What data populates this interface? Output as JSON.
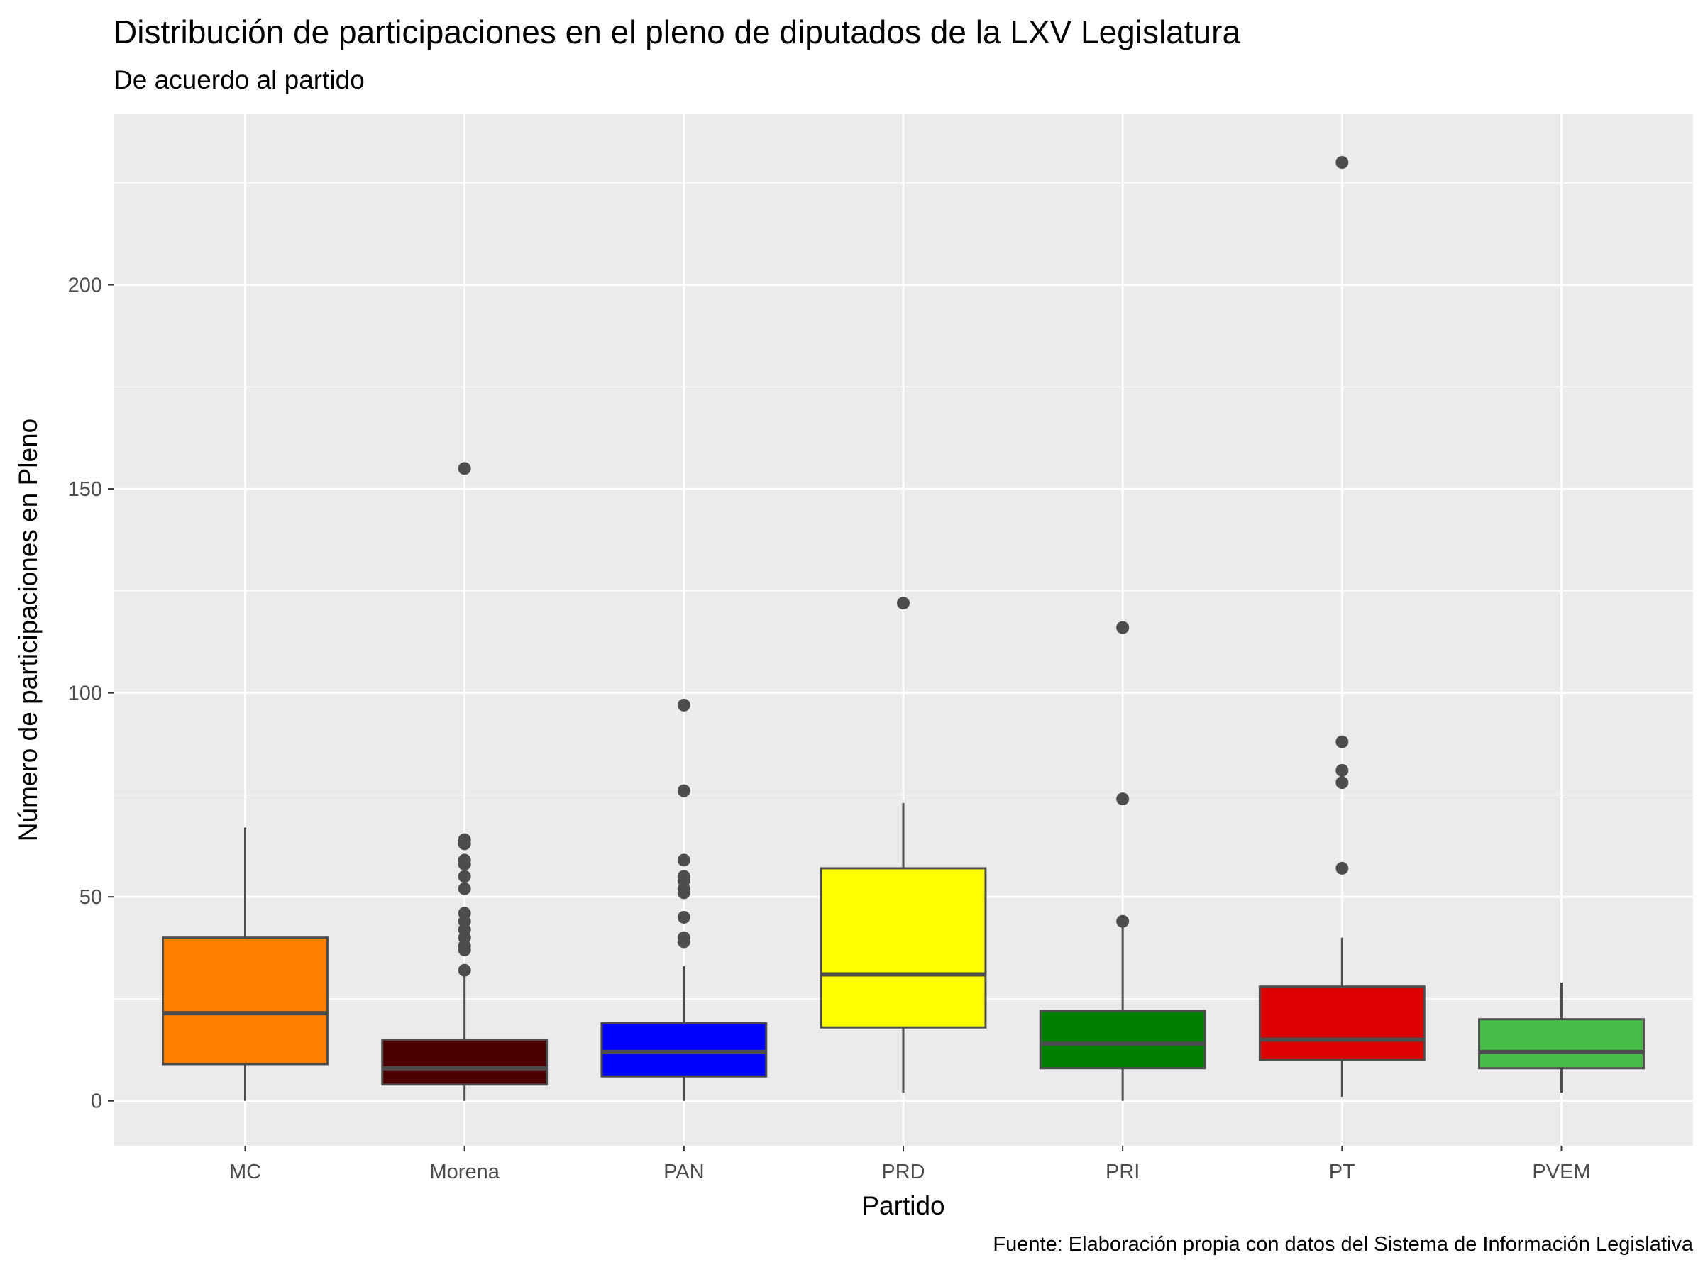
{
  "chart_data": {
    "type": "boxplot",
    "title": "Distribución de participaciones en el pleno de diputados de la LXV Legislatura",
    "subtitle": "De acuerdo al partido",
    "caption": "Fuente: Elaboración propia con datos del Sistema de Información Legislativa",
    "xlabel": "Partido",
    "ylabel": "Número de participaciones en Pleno",
    "ylim": [
      -11,
      242
    ],
    "yticks": [
      0,
      50,
      100,
      150,
      200
    ],
    "ytick_labels": [
      "0",
      "50",
      "100",
      "150",
      "200"
    ],
    "grid": true,
    "legend": "none",
    "categories": [
      "MC",
      "Morena",
      "PAN",
      "PRD",
      "PRI",
      "PT",
      "PVEM"
    ],
    "boxes": [
      {
        "name": "MC",
        "color": "#FF7F00",
        "whisker_low": 0,
        "q1": 9,
        "median": 21.5,
        "q3": 40,
        "whisker_high": 67,
        "outliers": []
      },
      {
        "name": "Morena",
        "color": "#4D0000",
        "whisker_low": 0,
        "q1": 4,
        "median": 8,
        "q3": 15,
        "whisker_high": 31,
        "outliers": [
          32,
          37,
          38,
          40,
          42,
          44,
          46,
          52,
          55,
          58,
          59,
          63,
          64,
          155
        ]
      },
      {
        "name": "PAN",
        "color": "#0000FF",
        "whisker_low": 0,
        "q1": 6,
        "median": 12,
        "q3": 19,
        "whisker_high": 33,
        "outliers": [
          39,
          40,
          45,
          51,
          52,
          54,
          55,
          59,
          76,
          97
        ]
      },
      {
        "name": "PRD",
        "color": "#FFFF00",
        "whisker_low": 2,
        "q1": 18,
        "median": 31,
        "q3": 57,
        "whisker_high": 73,
        "outliers": [
          122
        ]
      },
      {
        "name": "PRI",
        "color": "#008000",
        "whisker_low": 0,
        "q1": 8,
        "median": 14,
        "q3": 22,
        "whisker_high": 43,
        "outliers": [
          44,
          74,
          116
        ]
      },
      {
        "name": "PT",
        "color": "#DD0000",
        "whisker_low": 1,
        "q1": 10,
        "median": 15,
        "q3": 28,
        "whisker_high": 40,
        "outliers": [
          57,
          78,
          81,
          88,
          230
        ]
      },
      {
        "name": "PVEM",
        "color": "#47BD47",
        "whisker_low": 2,
        "q1": 8,
        "median": 12,
        "q3": 20,
        "whisker_high": 29,
        "outliers": []
      }
    ]
  }
}
